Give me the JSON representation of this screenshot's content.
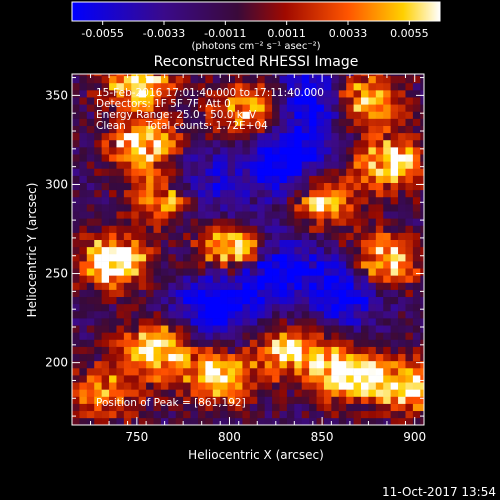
{
  "chart_data": {
    "type": "heatmap",
    "title": "Reconstructed RHESSI Image",
    "xlabel": "Heliocentric X (arcsec)",
    "ylabel": "Heliocentric Y (arcsec)",
    "xlim": [
      715,
      905
    ],
    "ylim": [
      165,
      362
    ],
    "xticks": [
      "750",
      "800",
      "850",
      "900"
    ],
    "xtick_values": [
      750,
      800,
      850,
      900
    ],
    "yticks": [
      "200",
      "250",
      "300",
      "350"
    ],
    "ytick_values": [
      200,
      250,
      300,
      350
    ],
    "colorbar": {
      "ticks": [
        "-0.0055",
        "-0.0033",
        "-0.0011",
        "0.0011",
        "0.0033",
        "0.0055"
      ],
      "tick_values": [
        -0.0055,
        -0.0033,
        -0.0011,
        0.0011,
        0.0033,
        0.0055
      ],
      "units_label": "(photons cm⁻² s⁻¹ asec⁻²)",
      "colors": [
        "#0000ff",
        "#2a0a8a",
        "#3a0a4a",
        "#a00a00",
        "#ff5500",
        "#ffcc00",
        "#ffffff"
      ]
    },
    "annotations": [
      "15-Feb-2016 17:01:40.000 to 17:11:40.000",
      "Detectors: 1F 5F 7F, Att 0",
      "Energy Range: 25.0 - 50.0 keV",
      "Clean      Total counts: 1.72E+04"
    ],
    "peak_label": "Position of Peak = [861,192]",
    "peak": [
      861,
      192
    ],
    "blobs": [
      {
        "x": 735,
        "y": 255,
        "w": 1.0
      },
      {
        "x": 752,
        "y": 320,
        "w": 0.9
      },
      {
        "x": 748,
        "y": 355,
        "w": 0.8
      },
      {
        "x": 765,
        "y": 290,
        "w": 0.95
      },
      {
        "x": 758,
        "y": 205,
        "w": 0.9
      },
      {
        "x": 792,
        "y": 190,
        "w": 0.85
      },
      {
        "x": 800,
        "y": 262,
        "w": 1.0
      },
      {
        "x": 808,
        "y": 340,
        "w": 0.8
      },
      {
        "x": 830,
        "y": 205,
        "w": 0.8
      },
      {
        "x": 848,
        "y": 288,
        "w": 0.75
      },
      {
        "x": 870,
        "y": 345,
        "w": 0.95
      },
      {
        "x": 885,
        "y": 310,
        "w": 0.85
      },
      {
        "x": 880,
        "y": 255,
        "w": 0.9
      },
      {
        "x": 861,
        "y": 192,
        "w": 1.0
      },
      {
        "x": 730,
        "y": 180,
        "w": 0.6
      },
      {
        "x": 895,
        "y": 185,
        "w": 0.8
      }
    ],
    "dark_regions": [
      {
        "x": 778,
        "y": 295
      },
      {
        "x": 820,
        "y": 252
      },
      {
        "x": 828,
        "y": 310
      },
      {
        "x": 860,
        "y": 240
      },
      {
        "x": 790,
        "y": 230
      },
      {
        "x": 845,
        "y": 345
      }
    ]
  },
  "footer_timestamp": "11-Oct-2017 13:54"
}
